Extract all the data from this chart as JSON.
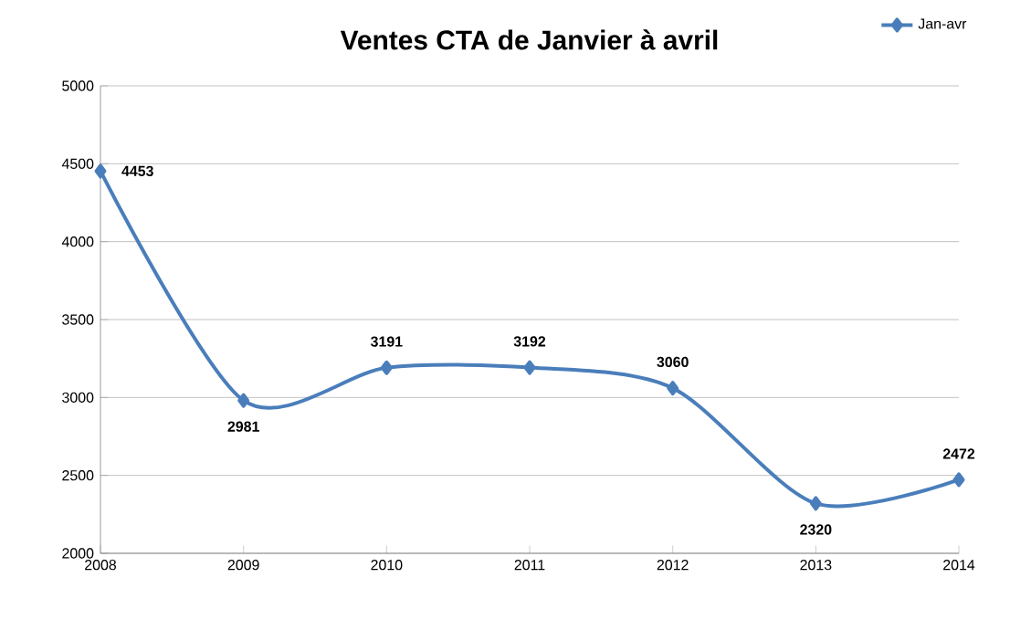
{
  "chart_data": {
    "type": "line",
    "title": "Ventes CTA de Janvier à avril",
    "x": [
      2008,
      2009,
      2010,
      2011,
      2012,
      2013,
      2014
    ],
    "series": [
      {
        "name": "Jan-avr",
        "color": "#4a7ebb",
        "values": [
          4453,
          2981,
          3191,
          3192,
          3060,
          2320,
          2472
        ]
      }
    ],
    "xlim": [
      2008,
      2014
    ],
    "xticks": [
      2008,
      2009,
      2010,
      2011,
      2012,
      2013,
      2014
    ],
    "ylim": [
      2000,
      5000
    ],
    "yticks": [
      2000,
      2500,
      3000,
      3500,
      4000,
      4500,
      5000
    ],
    "grid": "y",
    "legend": "top right",
    "marker": "diamond",
    "line_style": "solid",
    "data_labels": true
  }
}
